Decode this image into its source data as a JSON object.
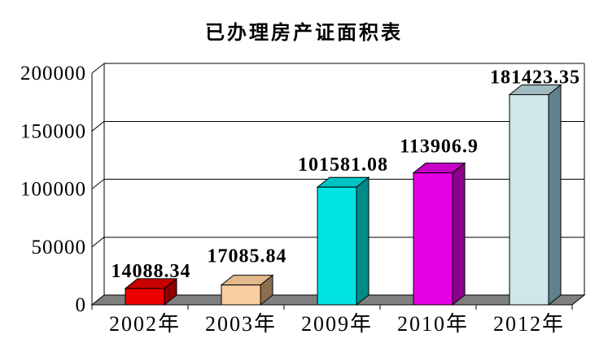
{
  "page": {
    "background": "#ffffff"
  },
  "chart_data": {
    "type": "bar",
    "style": "3d-column",
    "title": "已办理房产证面积表",
    "categories": [
      "2002年",
      "2003年",
      "2009年",
      "2010年",
      "2012年"
    ],
    "values": [
      14088.34,
      17085.84,
      101581.08,
      113906.9,
      181423.35
    ],
    "data_labels": [
      "14088.34",
      "17085.84",
      "101581.08",
      "113906.9",
      "181423.35"
    ],
    "xlabel": "",
    "ylabel": "",
    "ylim": [
      0,
      200000
    ],
    "yticks": [
      0,
      50000,
      100000,
      150000,
      200000
    ],
    "ytick_labels": [
      "0",
      "50000",
      "100000",
      "150000",
      "200000"
    ],
    "grid": true,
    "legend": "none",
    "bar_colors": [
      {
        "front": "#EE0000",
        "top": "#C90000",
        "side": "#8E0000"
      },
      {
        "front": "#FACDA0",
        "top": "#E3B88C",
        "side": "#8C6E4E"
      },
      {
        "front": "#00E3E3",
        "top": "#00C4C4",
        "side": "#008B8B"
      },
      {
        "front": "#E600E6",
        "top": "#C400C4",
        "side": "#8B008B"
      },
      {
        "front": "#CFE6EA",
        "top": "#A2BAC2",
        "side": "#5F828D"
      }
    ],
    "floor_color": "#808080",
    "wall_color": "#FFFFFF",
    "line_color": "#000000",
    "text_color": "#000000"
  }
}
